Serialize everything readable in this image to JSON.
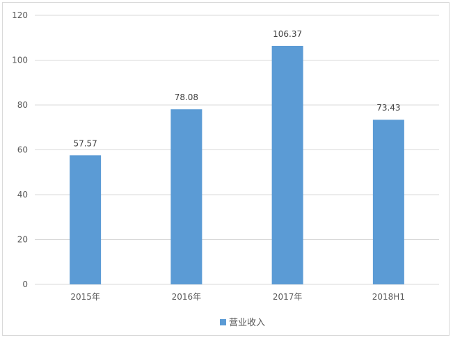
{
  "chart_data": {
    "type": "bar",
    "categories": [
      "2015年",
      "2016年",
      "2017年",
      "2018H1"
    ],
    "series": [
      {
        "name": "营业收入",
        "values": [
          57.57,
          78.08,
          106.37,
          73.43
        ],
        "color": "#5b9bd5"
      }
    ],
    "data_labels": [
      "57.57",
      "78.08",
      "106.37",
      "73.43"
    ],
    "ylim": [
      0,
      120
    ],
    "yticks": [
      0,
      20,
      40,
      60,
      80,
      100,
      120
    ],
    "ytick_labels": [
      "0",
      "20",
      "40",
      "60",
      "80",
      "100",
      "120"
    ],
    "grid": true,
    "legend": "bottom",
    "title": "",
    "xlabel": "",
    "ylabel": ""
  }
}
